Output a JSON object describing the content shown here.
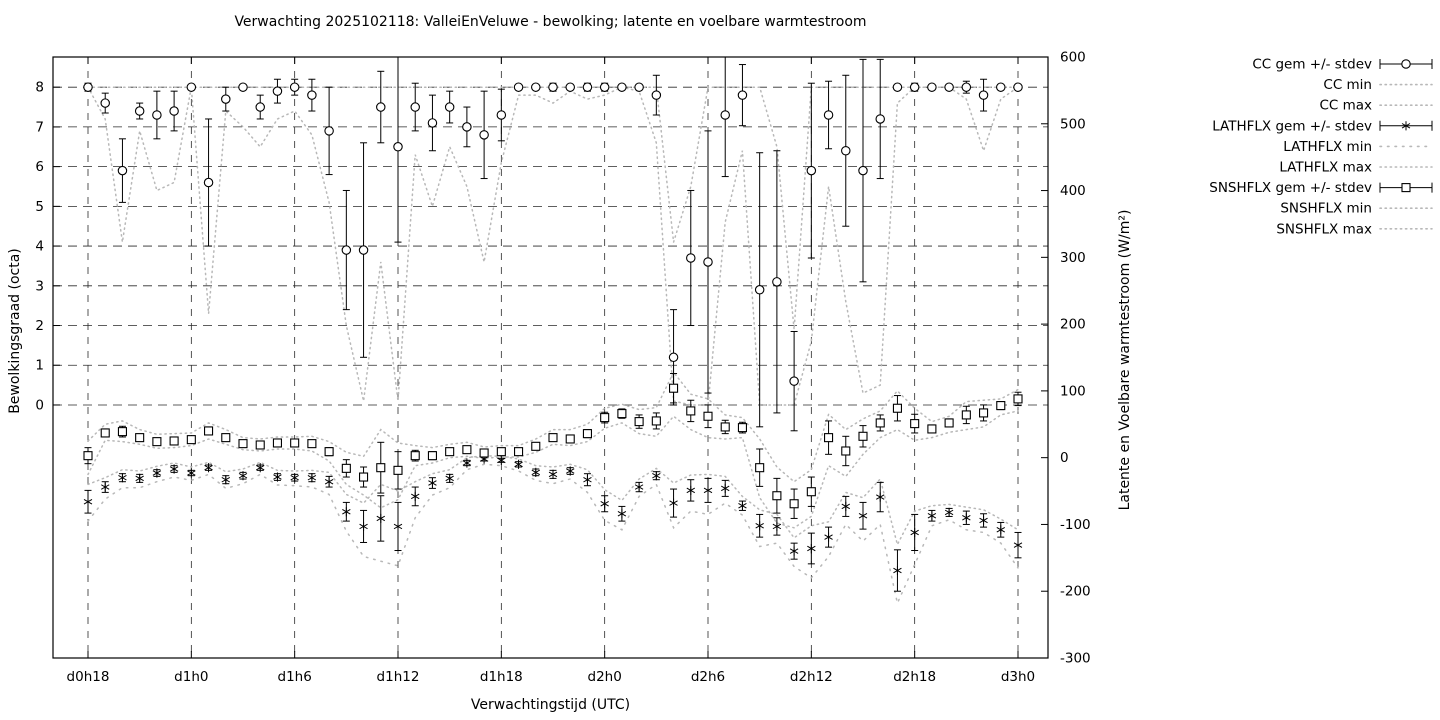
{
  "title": "Verwachting 2025102118: ValleiEnVeluwe - bewolking; latente en voelbare warmtestroom",
  "axes": {
    "left": {
      "label": "Bewolkingsgraad (octa)",
      "ticks": [
        "8",
        "7",
        "6",
        "5",
        "4",
        "3",
        "2",
        "1",
        "0"
      ],
      "tick_values": [
        8,
        7,
        6,
        5,
        4,
        3,
        2,
        1,
        0
      ]
    },
    "right": {
      "label": "Latente en Voelbare warmtestroom (W/m²)",
      "ticks": [
        "600",
        "500",
        "400",
        "300",
        "200",
        "100",
        "0",
        "-100",
        "-200",
        "-300"
      ],
      "tick_values": [
        600,
        500,
        400,
        300,
        200,
        100,
        0,
        -100,
        -200,
        -300
      ]
    },
    "x": {
      "label": "Verwachtingstijd (UTC)",
      "ticks": [
        "d0h18",
        "d1h0",
        "d1h6",
        "d1h12",
        "d1h18",
        "d2h0",
        "d2h6",
        "d2h12",
        "d2h18",
        "d3h0"
      ],
      "tick_hours": [
        0,
        6,
        12,
        18,
        24,
        30,
        36,
        42,
        48,
        54
      ]
    }
  },
  "legend": {
    "items": [
      {
        "label": "CC gem +/- stdev",
        "sample": "errorbar",
        "marker": "circle"
      },
      {
        "label": "CC min",
        "sample": "dotted",
        "dash": "1.3,3.8"
      },
      {
        "label": "CC max",
        "sample": "dotted",
        "dash": "1.3,3.8"
      },
      {
        "label": "LATHFLX gem +/- stdev",
        "sample": "errorbar",
        "marker": "asterisk"
      },
      {
        "label": "LATHFLX min",
        "sample": "dotted",
        "dash": "1.5,6"
      },
      {
        "label": "LATHFLX max",
        "sample": "dotted",
        "dash": "1.3,3.8"
      },
      {
        "label": "SNSHFLX gem +/- stdev",
        "sample": "errorbar",
        "marker": "square"
      },
      {
        "label": "SNSHFLX min",
        "sample": "dotted",
        "dash": "1.3,3.8"
      },
      {
        "label": "SNSHFLX max",
        "sample": "dotted",
        "dash": "1.3,3.8"
      }
    ]
  },
  "chart_data": {
    "type": "line",
    "subtype": "errorbars-with-minmax-envelopes",
    "x_hour_count": 55,
    "x_tick_labels": [
      "d0h18",
      "d1h0",
      "d1h6",
      "d1h12",
      "d1h18",
      "d2h0",
      "d2h6",
      "d2h12",
      "d2h18",
      "d3h0"
    ],
    "x_tick_hours": [
      0,
      6,
      12,
      18,
      24,
      30,
      36,
      42,
      48,
      54
    ],
    "ylim_left_octa": [
      -6.37,
      8.76
    ],
    "ylim_right_wm2": [
      -300,
      600
    ],
    "grid": true,
    "legend_position": "outside-top-right",
    "series": [
      {
        "name": "CC gem +/- stdev",
        "axis": "octa",
        "role": "mean",
        "marker": "circle",
        "values": [
          8.0,
          7.6,
          5.9,
          7.4,
          7.3,
          7.4,
          8.0,
          5.6,
          7.7,
          8.0,
          7.5,
          7.9,
          8.0,
          7.8,
          6.9,
          3.9,
          3.9,
          7.5,
          6.5,
          7.5,
          7.1,
          7.5,
          7.0,
          6.8,
          7.3,
          8.0,
          8.0,
          8.0,
          8.0,
          8.0,
          8.0,
          8.0,
          8.0,
          7.8,
          1.2,
          3.7,
          3.6,
          7.3,
          7.8,
          2.9,
          3.1,
          0.6,
          5.9,
          7.3,
          6.4,
          5.9,
          7.2,
          8.0,
          8.0,
          8.0,
          8.0,
          8.0,
          7.8,
          8.0,
          8.0
        ],
        "stdev": [
          0.1,
          0.25,
          0.8,
          0.2,
          0.6,
          0.5,
          0.05,
          1.6,
          0.3,
          0.05,
          0.3,
          0.3,
          0.2,
          0.4,
          1.1,
          1.5,
          2.7,
          0.9,
          2.4,
          0.6,
          0.7,
          0.4,
          0.5,
          1.1,
          0.65,
          0.02,
          0.02,
          0.1,
          0.02,
          0.1,
          0.1,
          0.02,
          0.02,
          0.5,
          1.2,
          1.7,
          3.3,
          1.55,
          0.77,
          3.45,
          3.3,
          1.25,
          2.2,
          0.85,
          1.9,
          2.8,
          1.5,
          0.05,
          0.1,
          0.02,
          0.02,
          0.15,
          0.4,
          0.05,
          0.05
        ]
      },
      {
        "name": "CC min",
        "axis": "octa",
        "role": "min",
        "style": "dotted",
        "dash": "1.3,3.8",
        "values": [
          8,
          7.2,
          4.1,
          6.9,
          5.4,
          5.6,
          8,
          2.3,
          7.4,
          7.0,
          6.5,
          7.2,
          7.4,
          6.8,
          5.1,
          2.0,
          0.1,
          3.6,
          0.1,
          6.3,
          5.0,
          6.5,
          5.5,
          3.6,
          6.1,
          7.8,
          7.8,
          7.6,
          7.9,
          7.7,
          7.8,
          8,
          7.9,
          6.6,
          0.1,
          0,
          0,
          4.6,
          6.4,
          0,
          0,
          0,
          1.6,
          5.5,
          2.6,
          0.3,
          0.5,
          7.6,
          8,
          8,
          8,
          7.7,
          6.4,
          7.7,
          8
        ]
      },
      {
        "name": "CC max",
        "axis": "octa",
        "role": "max",
        "style": "dotted",
        "dash": "1.3,3.8",
        "values": [
          8,
          8,
          8,
          8,
          8,
          8,
          8,
          8,
          8,
          8,
          8,
          8,
          8,
          8,
          8,
          8,
          8,
          8,
          8,
          8,
          8,
          8,
          8,
          8,
          8,
          8,
          8,
          8,
          8,
          8,
          8,
          8,
          8,
          8,
          4.1,
          5.5,
          8,
          8,
          8,
          8,
          6.5,
          1.9,
          8,
          8,
          8,
          8,
          8,
          8,
          8,
          8,
          8,
          8,
          8,
          8,
          8
        ]
      },
      {
        "name": "LATHFLX gem +/- stdev",
        "axis": "wm2",
        "role": "mean",
        "marker": "asterisk",
        "values": [
          -66,
          -44,
          -30,
          -31,
          -23,
          -17,
          -23,
          -15,
          -33,
          -27,
          -15,
          -29,
          -30,
          -30,
          -36,
          -81,
          -103,
          -91,
          -103,
          -58,
          -38,
          -31,
          -8,
          -2,
          -4,
          -10,
          -22,
          -25,
          -20,
          -33,
          -69,
          -84,
          -44,
          -27,
          -68,
          -49,
          -49,
          -46,
          -72,
          -102,
          -103,
          -140,
          -136,
          -119,
          -73,
          -87,
          -59,
          -169,
          -112,
          -87,
          -82,
          -90,
          -94,
          -108,
          -131
        ],
        "stdev": [
          17,
          8,
          6,
          6,
          5,
          5,
          4,
          4,
          6,
          5,
          4,
          5,
          5,
          6,
          8,
          14,
          24,
          34,
          36,
          14,
          8,
          6,
          4,
          3,
          3,
          4,
          5,
          6,
          5,
          9,
          12,
          11,
          7,
          6,
          21,
          16,
          18,
          12,
          7,
          17,
          13,
          12,
          23,
          15,
          15,
          20,
          22,
          31,
          27,
          8,
          6,
          10,
          10,
          11,
          19
        ]
      },
      {
        "name": "LATHFLX min",
        "axis": "wm2",
        "role": "min",
        "style": "dotted",
        "dash": "1.5,6",
        "values": [
          -95,
          -62,
          -45,
          -45,
          -36,
          -29,
          -34,
          -25,
          -46,
          -39,
          -25,
          -41,
          -42,
          -44,
          -55,
          -110,
          -148,
          -155,
          -162,
          -90,
          -56,
          -45,
          -18,
          -10,
          -12,
          -20,
          -34,
          -39,
          -32,
          -52,
          -94,
          -108,
          -58,
          -40,
          -105,
          -80,
          -85,
          -68,
          -86,
          -133,
          -128,
          -163,
          -180,
          -148,
          -100,
          -125,
          -100,
          -218,
          -160,
          -102,
          -93,
          -108,
          -112,
          -128,
          -165
        ]
      },
      {
        "name": "LATHFLX max",
        "axis": "wm2",
        "role": "max",
        "style": "dotted",
        "dash": "1.3,3.8",
        "values": [
          -40,
          -30,
          -18,
          -20,
          -13,
          -8,
          -14,
          -7,
          -21,
          -17,
          -7,
          -19,
          -20,
          -19,
          -22,
          -55,
          -68,
          -40,
          -50,
          -36,
          -24,
          -18,
          0,
          3,
          2,
          -2,
          -12,
          -14,
          -10,
          -18,
          -48,
          -64,
          -32,
          -16,
          -38,
          -26,
          -25,
          -28,
          -58,
          -78,
          -85,
          -120,
          -102,
          -96,
          -52,
          -60,
          -32,
          -130,
          -80,
          -72,
          -70,
          -74,
          -78,
          -92,
          -108
        ]
      },
      {
        "name": "SNSHFLX gem +/- stdev",
        "axis": "wm2",
        "role": "mean",
        "marker": "square",
        "values": [
          3,
          37,
          39,
          30,
          24,
          25,
          27,
          40,
          30,
          21,
          19,
          22,
          22,
          21,
          9,
          -16,
          -29,
          -15,
          -19,
          3,
          3,
          9,
          12,
          7,
          9,
          9,
          17,
          30,
          28,
          36,
          60,
          66,
          54,
          55,
          104,
          70,
          62,
          46,
          45,
          -15,
          -57,
          -69,
          -51,
          30,
          10,
          32,
          52,
          74,
          51,
          43,
          52,
          64,
          67,
          78,
          88
        ],
        "stdev": [
          12,
          6,
          8,
          5,
          5,
          5,
          4,
          6,
          5,
          4,
          4,
          4,
          4,
          5,
          6,
          13,
          15,
          38,
          28,
          8,
          6,
          5,
          5,
          4,
          4,
          4,
          4,
          5,
          5,
          6,
          8,
          7,
          10,
          12,
          22,
          16,
          17,
          10,
          8,
          28,
          26,
          22,
          22,
          25,
          22,
          16,
          12,
          19,
          14,
          6,
          6,
          13,
          12,
          6,
          10
        ]
      },
      {
        "name": "SNSHFLX min",
        "axis": "wm2",
        "role": "min",
        "style": "dotted",
        "dash": "1.3,3.8",
        "values": [
          -25,
          26,
          24,
          20,
          14,
          15,
          18,
          28,
          20,
          12,
          10,
          13,
          13,
          10,
          -5,
          -40,
          -56,
          -75,
          -63,
          -12,
          -8,
          0,
          2,
          -1,
          1,
          1,
          8,
          20,
          18,
          24,
          44,
          52,
          36,
          32,
          62,
          42,
          30,
          28,
          30,
          -60,
          -98,
          -105,
          -88,
          -12,
          -28,
          5,
          30,
          42,
          26,
          30,
          38,
          42,
          46,
          64,
          70
        ]
      },
      {
        "name": "SNSHFLX max",
        "axis": "wm2",
        "role": "max",
        "style": "dotted",
        "dash": "1.3,3.8",
        "values": [
          25,
          50,
          55,
          42,
          35,
          36,
          37,
          52,
          42,
          30,
          28,
          31,
          31,
          32,
          24,
          8,
          2,
          42,
          22,
          18,
          15,
          20,
          23,
          16,
          18,
          18,
          28,
          42,
          42,
          50,
          74,
          80,
          72,
          75,
          128,
          95,
          88,
          64,
          60,
          28,
          -14,
          -36,
          -18,
          65,
          42,
          58,
          70,
          100,
          74,
          54,
          62,
          84,
          86,
          88,
          102
        ]
      }
    ],
    "colors": {
      "mean_series": "#000000",
      "minmax_series": "#b8b8b8",
      "grid": "#2a2a2a"
    }
  }
}
